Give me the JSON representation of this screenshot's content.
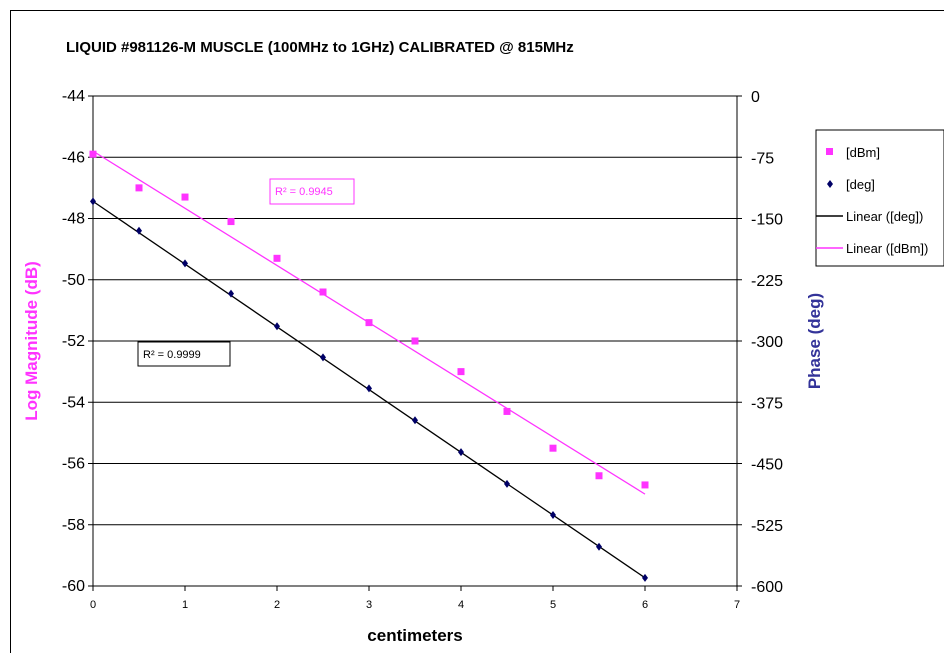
{
  "chart_data": {
    "type": "scatter",
    "title": "LIQUID #981126-M MUSCLE (100MHz to 1GHz) CALIBRATED @ 815MHz",
    "xlabel": "centimeters",
    "ylabel_left": "Log Magnitude (dB)",
    "ylabel_right": "Phase (deg)",
    "xlim": [
      0,
      7
    ],
    "ylim_left": [
      -60,
      -44
    ],
    "ylim_right": [
      -600,
      0
    ],
    "x_ticks": [
      "0",
      "1",
      "2",
      "3",
      "4",
      "5",
      "6",
      "7"
    ],
    "y_left_ticks": [
      "-44",
      "-46",
      "-48",
      "-50",
      "-52",
      "-54",
      "-56",
      "-58",
      "-60"
    ],
    "y_right_ticks": [
      "0",
      "-75",
      "-150",
      "-225",
      "-300",
      "-375",
      "-450",
      "-525",
      "-600"
    ],
    "grid": true,
    "legend_position": "right",
    "colors": {
      "dbm": "#ff33ff",
      "deg": "#000066",
      "fit_deg": "#000000",
      "fit_dbm": "#ff33ff",
      "left_axis_label": "#ff33ff",
      "right_axis_label": "#333399"
    },
    "series": [
      {
        "name": "[dBm]",
        "axis": "left",
        "marker": "square",
        "x": [
          0,
          0.5,
          1,
          1.5,
          2,
          2.5,
          3,
          3.5,
          4,
          4.5,
          5,
          5.5,
          6
        ],
        "y": [
          -45.9,
          -47.0,
          -47.3,
          -48.1,
          -49.3,
          -50.4,
          -51.4,
          -52.0,
          -53.0,
          -54.3,
          -55.5,
          -56.4,
          -56.7
        ]
      },
      {
        "name": "[deg]",
        "axis": "right",
        "marker": "diamond",
        "x": [
          0,
          0.5,
          1,
          1.5,
          2,
          2.5,
          3,
          3.5,
          4,
          4.5,
          5,
          5.5,
          6
        ],
        "y": [
          -129,
          -165,
          -205,
          -242,
          -282,
          -320,
          -358,
          -397,
          -436,
          -475,
          -513,
          -552,
          -590
        ]
      }
    ],
    "trendlines": [
      {
        "name": "Linear ([deg])",
        "axis": "right",
        "x": [
          0,
          6
        ],
        "y": [
          -129,
          -590
        ],
        "r2_label": "R² = 0.9999"
      },
      {
        "name": "Linear ([dBm])",
        "axis": "left",
        "x": [
          0,
          6
        ],
        "y": [
          -45.8,
          -57.0
        ],
        "r2_label": "R² = 0.9945"
      }
    ],
    "legend": [
      "[dBm]",
      "[deg]",
      "Linear ([deg])",
      "Linear ([dBm])"
    ]
  }
}
